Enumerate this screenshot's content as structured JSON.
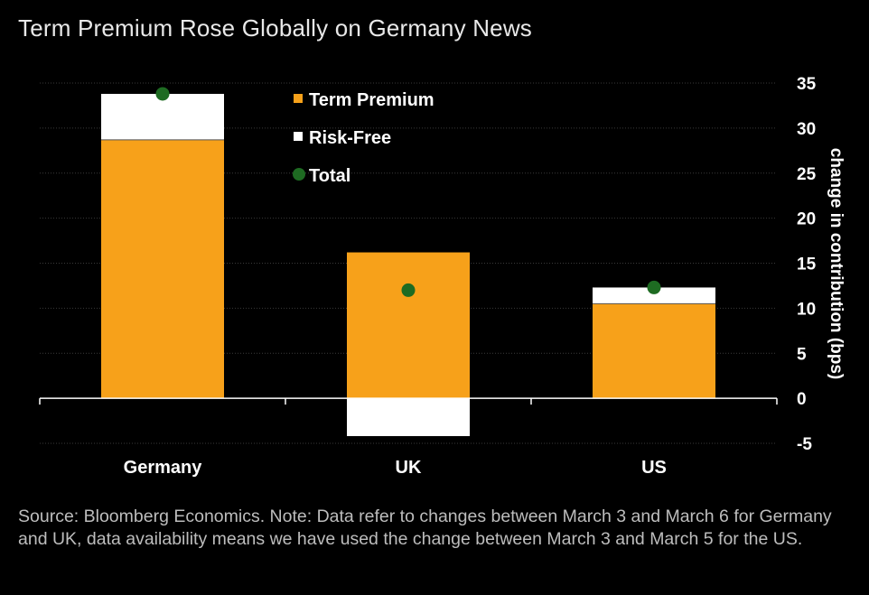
{
  "title": "Term Premium Rose Globally on Germany News",
  "source_note": "Source: Bloomberg Economics. Note: Data refer to changes between March 3 and March 6 for Germany and UK, data availability means we have used the change between March 3 and March 5 for the US.",
  "colors": {
    "background": "#000000",
    "term_premium": "#F7A11A",
    "risk_free": "#FFFFFF",
    "total": "#1E6B22",
    "grid": "#3a3a3a",
    "text": "#FFFFFF"
  },
  "chart_data": {
    "type": "bar",
    "stacked": true,
    "categories": [
      "Germany",
      "UK",
      "US"
    ],
    "series": [
      {
        "name": "Term Premium",
        "kind": "bar",
        "color": "#F7A11A",
        "values": [
          28.7,
          16.2,
          10.5
        ]
      },
      {
        "name": "Risk-Free",
        "kind": "bar",
        "color": "#FFFFFF",
        "values": [
          5.1,
          -4.2,
          1.8
        ]
      },
      {
        "name": "Total",
        "kind": "dot",
        "color": "#1E6B22",
        "values": [
          33.8,
          12.0,
          12.3
        ]
      }
    ],
    "ylabel": "change in contribution (bps)",
    "ylim": [
      -5,
      35
    ],
    "yticks": [
      "35",
      "30",
      "25",
      "20",
      "15",
      "10",
      "5",
      "0",
      "-5"
    ],
    "y_axis_side": "right",
    "grid": true,
    "legend_position": "top-center"
  }
}
